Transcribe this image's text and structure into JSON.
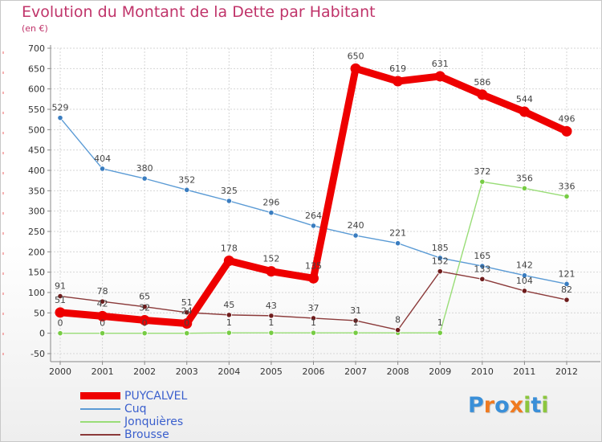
{
  "title": "Evolution du Montant de la Dette par Habitant",
  "unit": "(en €)",
  "logo": {
    "text": "Proxiti",
    "letters": [
      {
        "ch": "P",
        "color": "#3a8fd8"
      },
      {
        "ch": "r",
        "color": "#f07a20"
      },
      {
        "ch": "o",
        "color": "#3a8fd8"
      },
      {
        "ch": "x",
        "color": "#f07a20"
      },
      {
        "ch": "i",
        "color": "#8cc63e"
      },
      {
        "ch": "t",
        "color": "#3a8fd8"
      },
      {
        "ch": "i",
        "color": "#8cc63e"
      }
    ]
  },
  "chart_data": {
    "type": "line",
    "title": "Evolution du Montant de la Dette par Habitant",
    "ylabel": "(en €)",
    "x": [
      2000,
      2001,
      2002,
      2003,
      2004,
      2005,
      2006,
      2007,
      2008,
      2009,
      2010,
      2011,
      2012
    ],
    "ylim": [
      -50,
      700
    ],
    "yticks": [
      -50,
      0,
      50,
      100,
      150,
      200,
      250,
      300,
      350,
      400,
      450,
      500,
      550,
      600,
      650,
      700
    ],
    "grid": true,
    "legend_position": "bottom-left",
    "series": [
      {
        "name": "PUYCALVEL",
        "color": "#ee0000",
        "marker": "#ee0000",
        "emphasis": true,
        "values": [
          51,
          42,
          32,
          24,
          178,
          152,
          135,
          650,
          619,
          631,
          586,
          544,
          496
        ],
        "labels": [
          "51",
          "42",
          "32",
          "24",
          "178",
          "152",
          "135",
          "650",
          "619",
          "631",
          "586",
          "544",
          "496"
        ]
      },
      {
        "name": "Cuq",
        "color": "#5b9bd5",
        "marker": "#3a7dc0",
        "emphasis": false,
        "values": [
          529,
          404,
          380,
          352,
          325,
          296,
          264,
          240,
          221,
          185,
          165,
          142,
          121
        ],
        "labels": [
          "529",
          "404",
          "380",
          "352",
          "325",
          "296",
          "264",
          "240",
          "221",
          "185",
          "165",
          "142",
          "121"
        ]
      },
      {
        "name": "Jonquières",
        "color": "#99dd77",
        "marker": "#77cc44",
        "emphasis": false,
        "values": [
          0,
          0,
          0,
          0,
          1,
          1,
          1,
          1,
          1,
          1,
          372,
          356,
          336
        ],
        "labels": [
          "0",
          "0",
          "0",
          "0",
          "1",
          "1",
          "1",
          "1",
          "",
          "1",
          "372",
          "356",
          "336"
        ]
      },
      {
        "name": "Brousse",
        "color": "#8b3a3a",
        "marker": "#6e1c1c",
        "emphasis": false,
        "values": [
          91,
          78,
          65,
          51,
          45,
          43,
          37,
          31,
          8,
          152,
          133,
          104,
          82
        ],
        "labels": [
          "91",
          "78",
          "65",
          "51",
          "45",
          "43",
          "37",
          "31",
          "8",
          "152",
          "133",
          "104",
          "82"
        ]
      }
    ]
  }
}
